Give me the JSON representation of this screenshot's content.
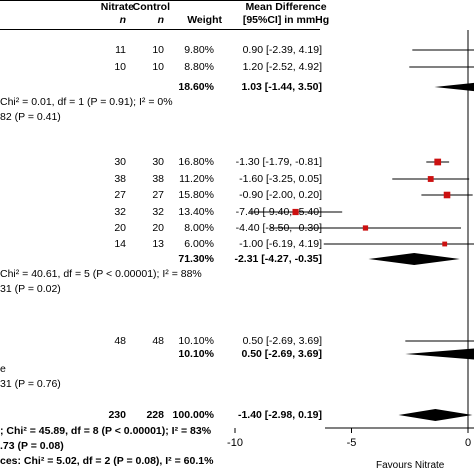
{
  "headers": {
    "nitrate": "Nitrate",
    "control": "Control",
    "n1": "n",
    "n2": "n",
    "weight": "Weight",
    "md_line1": "Mean Difference",
    "md_line2": "[95%CI] in mmHg"
  },
  "groups": [
    {
      "rows": [
        {
          "n1": "11",
          "n2": "10",
          "weight": "9.80%",
          "ci": "0.90 [-2.39, 4.19]"
        },
        {
          "n1": "10",
          "n2": "10",
          "weight": "8.80%",
          "ci": "1.20 [-2.52, 4.92]"
        }
      ],
      "subtotal": {
        "weight": "18.60%",
        "ci": "1.03 [-1.44, 3.50]"
      },
      "het": "Chi² = 0.01, df = 1 (P = 0.91); I² = 0%",
      "test": "82 (P = 0.41)"
    },
    {
      "rows": [
        {
          "n1": "30",
          "n2": "30",
          "weight": "16.80%",
          "ci": "-1.30 [-1.79, -0.81]"
        },
        {
          "n1": "38",
          "n2": "38",
          "weight": "11.20%",
          "ci": "-1.60 [-3.25, 0.05]"
        },
        {
          "n1": "27",
          "n2": "27",
          "weight": "15.80%",
          "ci": "-0.90 [-2.00, 0.20]"
        },
        {
          "n1": "32",
          "n2": "32",
          "weight": "13.40%",
          "ci": "-7.40 [-9.40, -5.40]"
        },
        {
          "n1": "20",
          "n2": "20",
          "weight": "8.00%",
          "ci": "-4.40 [-8.50, -0.30]"
        },
        {
          "n1": "14",
          "n2": "13",
          "weight": "6.00%",
          "ci": "-1.00 [-6.19, 4.19]"
        }
      ],
      "subtotal": {
        "weight": "71.30%",
        "ci": "-2.31 [-4.27, -0.35]"
      },
      "het": "Chi² = 40.61, df = 5 (P < 0.00001); I² = 88%",
      "test": "31 (P = 0.02)"
    },
    {
      "rows": [
        {
          "n1": "48",
          "n2": "48",
          "weight": "10.10%",
          "ci": "0.50 [-2.69, 3.69]"
        }
      ],
      "subtotal": {
        "weight": "10.10%",
        "ci": "0.50 [-2.69, 3.69]"
      },
      "het": "e",
      "test": "31 (P = 0.76)"
    }
  ],
  "total": {
    "n1": "230",
    "n2": "228",
    "weight": "100.00%",
    "ci": "-1.40 [-2.98, 0.19]"
  },
  "footer": {
    "het": "; Chi² = 45.89, df = 8 (P < 0.00001); I² = 83%",
    "test": ".73 (P = 0.08)",
    "subgroup": "ces: Chi² = 5.02, df = 2 (P = 0.08), I² = 60.1%",
    "favours": "Favours Nitrate"
  },
  "colors": {
    "study_marker": "#cc1111",
    "diamond": "#000000"
  },
  "chart_data": {
    "type": "forest",
    "effect_measure": "Mean Difference [95%CI] in mmHg",
    "xaxis_ticks": [
      "-10",
      "-5",
      "0"
    ],
    "x_range_visible": [
      -11.5,
      0.5
    ],
    "studies": [
      {
        "group": 1,
        "md": 0.9,
        "lo": -2.39,
        "hi": 4.19,
        "weight": 9.8
      },
      {
        "group": 1,
        "md": 1.2,
        "lo": -2.52,
        "hi": 4.92,
        "weight": 8.8
      },
      {
        "group": 2,
        "md": -1.3,
        "lo": -1.79,
        "hi": -0.81,
        "weight": 16.8
      },
      {
        "group": 2,
        "md": -1.6,
        "lo": -3.25,
        "hi": 0.05,
        "weight": 11.2
      },
      {
        "group": 2,
        "md": -0.9,
        "lo": -2.0,
        "hi": 0.2,
        "weight": 15.8
      },
      {
        "group": 2,
        "md": -7.4,
        "lo": -9.4,
        "hi": -5.4,
        "weight": 13.4
      },
      {
        "group": 2,
        "md": -4.4,
        "lo": -8.5,
        "hi": -0.3,
        "weight": 8.0
      },
      {
        "group": 2,
        "md": -1.0,
        "lo": -6.19,
        "hi": 4.19,
        "weight": 6.0
      },
      {
        "group": 3,
        "md": 0.5,
        "lo": -2.69,
        "hi": 3.69,
        "weight": 10.1
      }
    ],
    "subtotals": [
      {
        "group": 1,
        "md": 1.03,
        "lo": -1.44,
        "hi": 3.5
      },
      {
        "group": 2,
        "md": -2.31,
        "lo": -4.27,
        "hi": -0.35
      },
      {
        "group": 3,
        "md": 0.5,
        "lo": -2.69,
        "hi": 3.69
      }
    ],
    "overall": {
      "md": -1.4,
      "lo": -2.98,
      "hi": 0.19
    }
  }
}
